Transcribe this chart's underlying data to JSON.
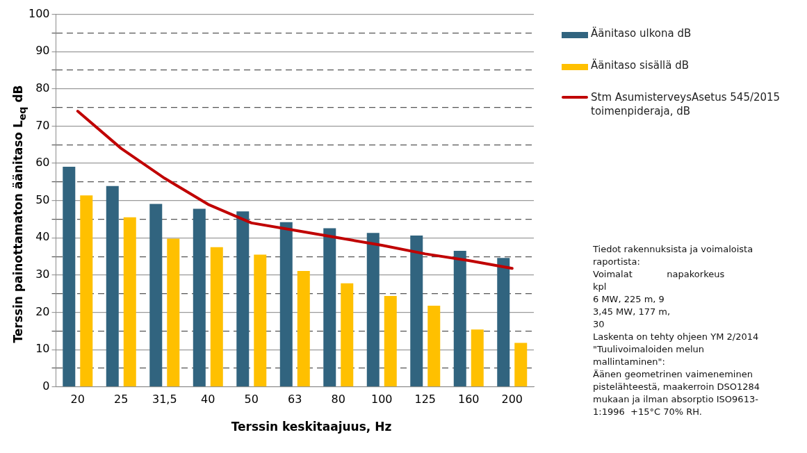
{
  "chart_data": {
    "type": "bar",
    "xlabel": "Terssin keskitaajuus, Hz",
    "ylabel": "Terssin painottamaton äänitaso L$_{eq}$ dB",
    "categories": [
      "20",
      "25",
      "31,5",
      "40",
      "50",
      "63",
      "80",
      "100",
      "125",
      "160",
      "200"
    ],
    "series": [
      {
        "name": "Äänitaso ulkona dB",
        "color": "#31647f",
        "values": [
          59.1,
          53.9,
          49.1,
          47.8,
          47.1,
          44.2,
          42.6,
          41.3,
          40.6,
          36.5,
          34.6
        ]
      },
      {
        "name": "Äänitaso sisällä dB",
        "color": "#ffc000",
        "values": [
          51.4,
          45.5,
          39.8,
          37.5,
          35.5,
          31.1,
          27.8,
          24.4,
          21.8,
          15.4,
          11.8
        ]
      },
      {
        "name": "Stm AsumisterveysAsetus 545/2015 toimenpideraja, dB",
        "type": "line",
        "color": "#c00000",
        "values": [
          74,
          64,
          56,
          49,
          44,
          42,
          40,
          38,
          35.7,
          33.9,
          31.8
        ]
      }
    ],
    "ylim": [
      0,
      100
    ],
    "yticks": [
      0,
      {
        "value": 5,
        "label": null
      },
      10,
      {
        "value": 15,
        "label": null
      },
      20,
      {
        "value": 25,
        "label": null
      },
      30,
      {
        "value": 35,
        "label": null
      },
      40,
      {
        "value": 45,
        "label": null
      },
      50,
      {
        "value": 55,
        "label": null
      },
      60,
      {
        "value": 65,
        "label": null
      },
      70,
      {
        "value": 75,
        "label": null
      },
      80,
      {
        "value": 85,
        "label": null
      },
      90,
      {
        "value": 95,
        "label": null
      },
      100
    ],
    "grid": "y",
    "legend": "top right",
    "marker": "none",
    "line_style": "solid",
    "annotations": [
      "Tiedot rakennuksista ja voimaloista",
      "raportista:",
      "Voimalat            napakorkeus",
      "kpl",
      "6 MW, 225 m, 9",
      "3,45 MW, 177 m,",
      "30",
      "Laskenta on tehty ohjeen YM 2/2014",
      "\"Tuulivoimaloiden melun",
      "mallintaminen\":",
      "Äänen geometrinen vaimeneminen",
      "pistelähteestä, maakerroin DSO1284",
      "mukaan ja ilman absorptio ISO9613-",
      "1:1996  +15°C 70% RH."
    ]
  }
}
